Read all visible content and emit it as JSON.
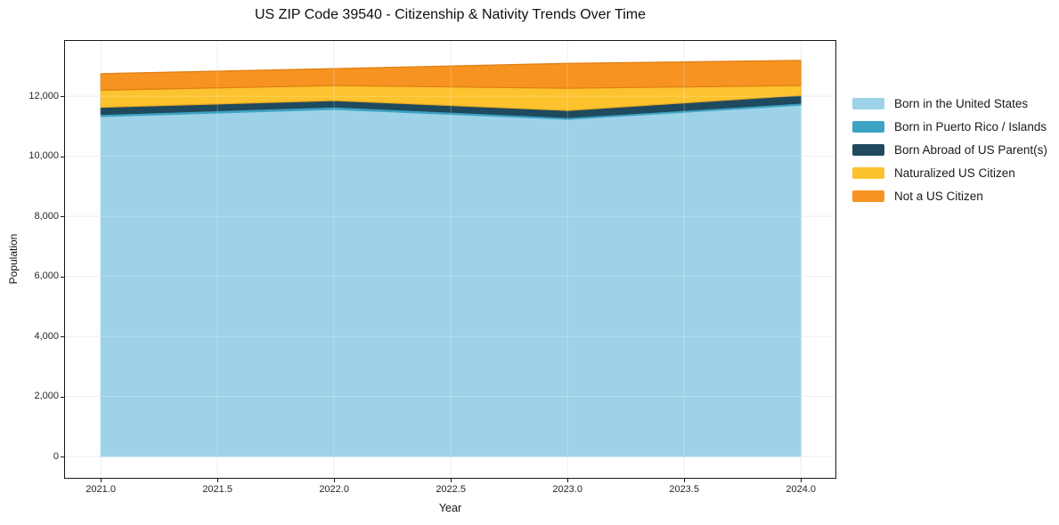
{
  "figure": {
    "background": "#ffffff",
    "frame_color": "#181818",
    "grid_color": "#e9e9e9"
  },
  "chart_data": {
    "type": "area",
    "stacked": true,
    "title": "US ZIP Code 39540 - Citizenship & Nativity Trends Over Time",
    "xlabel": "Year",
    "ylabel": "Population",
    "grid": true,
    "legend_position": "outside-right-top",
    "x": [
      2021,
      2022,
      2023,
      2024
    ],
    "series": [
      {
        "name": "Born in the United States",
        "color": "#9ED2E8",
        "edge": "#9ED2E8",
        "values": [
          11320,
          11560,
          11230,
          11705
        ]
      },
      {
        "name": "Born in Puerto Rico / Islands",
        "color": "#3EA3C3",
        "edge": "#3EA3C3",
        "values": [
          70,
          85,
          60,
          60
        ]
      },
      {
        "name": "Born Abroad of US Parent(s)",
        "color": "#1F4A5E",
        "edge": "#1F4A5E",
        "values": [
          240,
          210,
          235,
          265
        ]
      },
      {
        "name": "Naturalized US Citizen",
        "color": "#FCC32E",
        "edge": "#E9A820",
        "values": [
          570,
          500,
          740,
          325
        ]
      },
      {
        "name": "Not a US Citizen",
        "color": "#F79320",
        "edge": "#E07D12",
        "values": [
          550,
          565,
          830,
          835
        ]
      }
    ],
    "totals": [
      12750,
      12920,
      13095,
      13190
    ],
    "x_ticks": [
      {
        "label": "2021.0",
        "value": 2021.0
      },
      {
        "label": "2021.5",
        "value": 2021.5
      },
      {
        "label": "2022.0",
        "value": 2022.0
      },
      {
        "label": "2022.5",
        "value": 2022.5
      },
      {
        "label": "2023.0",
        "value": 2023.0
      },
      {
        "label": "2023.5",
        "value": 2023.5
      },
      {
        "label": "2024.0",
        "value": 2024.0
      }
    ],
    "y_ticks": [
      {
        "label": "0",
        "value": 0
      },
      {
        "label": "2,000",
        "value": 2000
      },
      {
        "label": "4,000",
        "value": 4000
      },
      {
        "label": "6,000",
        "value": 6000
      },
      {
        "label": "8,000",
        "value": 8000
      },
      {
        "label": "10,000",
        "value": 10000
      },
      {
        "label": "12,000",
        "value": 12000
      }
    ],
    "xlim": [
      2020.843,
      2024.152
    ],
    "ylim": [
      -740,
      13870
    ]
  }
}
